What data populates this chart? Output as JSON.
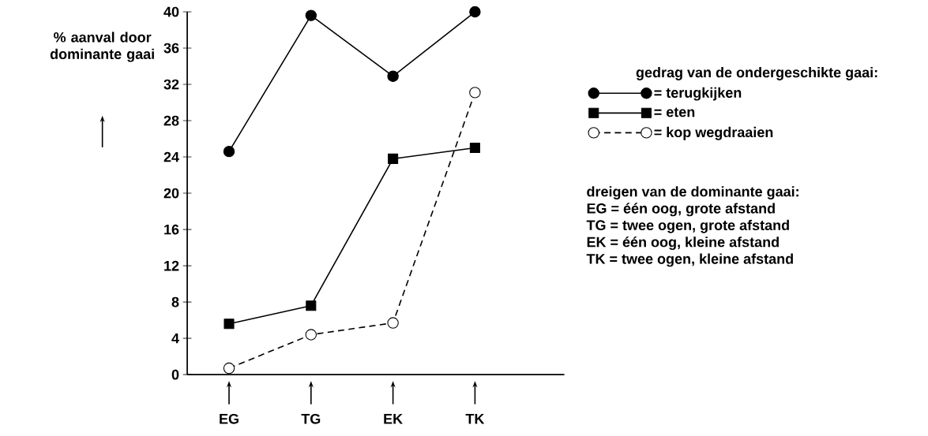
{
  "chart_data": {
    "type": "line",
    "ylabel": "% aanval door dominante gaai",
    "categories": [
      "EG",
      "TG",
      "EK",
      "TK"
    ],
    "series": [
      {
        "name": "= terugkijken",
        "color": "#000000",
        "marker": "circle",
        "line_style": "solid",
        "values": [
          24.6,
          39.6,
          32.9,
          40
        ]
      },
      {
        "name": "= eten",
        "color": "#000000",
        "marker": "square",
        "line_style": "solid",
        "values": [
          5.6,
          7.6,
          23.8,
          25
        ]
      },
      {
        "name": "= kop wegdraaien",
        "color": "#000000",
        "marker": "circle",
        "line_style": "dashed",
        "values": [
          0.7,
          4.4,
          5.7,
          31.1
        ]
      }
    ],
    "ylim": [
      0,
      40
    ],
    "yticks": [
      0,
      4,
      8,
      12,
      16,
      20,
      24,
      28,
      32,
      36,
      40
    ],
    "legend": "right",
    "legend_title": "gedrag van de ondergeschikte gaai:",
    "grid": false,
    "annotations": [
      "dreigen van de dominante gaai:",
      "EG = één oog, grote afstand",
      "TG = twee ogen, grote afstand",
      "EK = één oog, kleine afstand",
      "TK = twee ogen, kleine afstand"
    ]
  }
}
